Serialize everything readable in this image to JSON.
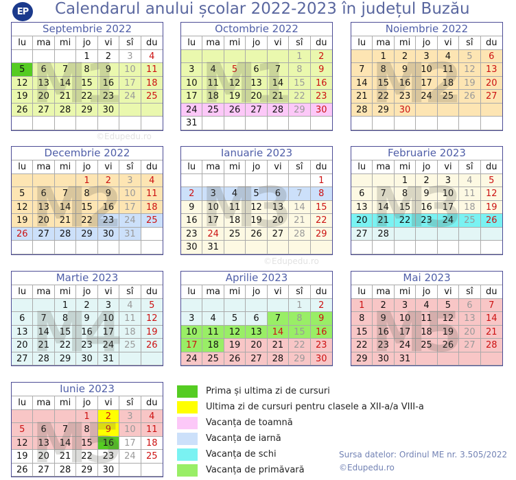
{
  "header": {
    "logo_text": "EP",
    "title": "Calendarul anului școlar 2022-2023 în județul Buzău"
  },
  "weekdays": [
    "lu",
    "ma",
    "mi",
    "jo",
    "vi",
    "sî",
    "du"
  ],
  "colors": {
    "white": "#ffffff",
    "first_last_day": "#55cc22",
    "last_day_xii_viii": "#ffff00",
    "autumn": "#fcc8f8",
    "winter": "#cce0fa",
    "ski": "#7af2f2",
    "spring": "#99ee66",
    "m1": "#eaf8ae",
    "m2": "#fde5b3",
    "m3": "#fdf9e3",
    "m4": "#e3f6f6",
    "m5": "#f8c6c6",
    "sunday_text": "#cc1111",
    "saturday_text": "#999999",
    "holiday_text": "#cc1111"
  },
  "months": [
    {
      "name": "Septembrie 2022",
      "offset": 3,
      "days": 30,
      "rows": 6,
      "watermark": "M1",
      "lead": "white",
      "trail": "m1",
      "extra": "white",
      "fills": [
        [
          1,
          4,
          "white"
        ],
        [
          5,
          5,
          "first_last_day"
        ],
        [
          6,
          30,
          "m1"
        ]
      ],
      "holidays": []
    },
    {
      "name": "Octombrie 2022",
      "offset": 5,
      "days": 31,
      "rows": 6,
      "watermark": "M1",
      "lead": "m1",
      "trail": "white",
      "extra": "white",
      "fills": [
        [
          1,
          23,
          "m1"
        ],
        [
          24,
          30,
          "autumn"
        ],
        [
          31,
          31,
          "white"
        ]
      ],
      "holidays": [
        5
      ]
    },
    {
      "name": "Noiembrie 2022",
      "offset": 1,
      "days": 30,
      "rows": 6,
      "watermark": "M2",
      "lead": "m2",
      "trail": "m2",
      "extra": "white",
      "fills": [
        [
          1,
          30,
          "m2"
        ]
      ],
      "holidays": [
        30
      ]
    },
    {
      "name": "Decembrie 2022",
      "offset": 3,
      "days": 31,
      "rows": 6,
      "watermark": "M2",
      "lead": "m2",
      "trail": "white",
      "extra": "white",
      "fills": [
        [
          1,
          22,
          "m2"
        ],
        [
          23,
          31,
          "winter"
        ]
      ],
      "holidays": [
        1,
        2,
        26
      ]
    },
    {
      "name": "Ianuarie 2023",
      "offset": 6,
      "days": 31,
      "rows": 6,
      "watermark": "M3",
      "lead": "white",
      "trail": "m3",
      "extra": "white",
      "fills": [
        [
          1,
          1,
          "white"
        ],
        [
          2,
          8,
          "winter"
        ],
        [
          9,
          31,
          "m3"
        ]
      ],
      "holidays": [
        2,
        24
      ]
    },
    {
      "name": "Februarie 2023",
      "offset": 2,
      "days": 28,
      "rows": 6,
      "watermark": "M3",
      "lead": "m3",
      "trail": "m4",
      "extra": "white",
      "fills": [
        [
          1,
          19,
          "m3"
        ],
        [
          20,
          26,
          "ski"
        ],
        [
          27,
          28,
          "m4"
        ]
      ],
      "holidays": []
    },
    {
      "name": "Martie 2023",
      "offset": 2,
      "days": 31,
      "rows": 5,
      "watermark": "M4",
      "lead": "m4",
      "trail": "m4",
      "extra": "white",
      "fills": [
        [
          1,
          31,
          "m4"
        ]
      ],
      "holidays": []
    },
    {
      "name": "Aprilie 2023",
      "offset": 5,
      "days": 30,
      "rows": 5,
      "watermark": "",
      "lead": "m4",
      "trail": "m5",
      "extra": "white",
      "fills": [
        [
          1,
          6,
          "m4"
        ],
        [
          7,
          18,
          "spring"
        ],
        [
          19,
          30,
          "m5"
        ]
      ],
      "holidays": [
        14,
        17
      ]
    },
    {
      "name": "Mai 2023",
      "offset": 0,
      "days": 31,
      "rows": 5,
      "watermark": "M5",
      "lead": "m5",
      "trail": "m5",
      "extra": "white",
      "fills": [
        [
          1,
          31,
          "m5"
        ]
      ],
      "holidays": [
        1
      ]
    },
    {
      "name": "Iunie 2023",
      "offset": 3,
      "days": 30,
      "rows": 5,
      "watermark": "M5",
      "lead": "m5",
      "trail": "white",
      "extra": "white",
      "fills": [
        [
          1,
          15,
          "m5"
        ],
        [
          2,
          2,
          "last_day_xii_viii"
        ],
        [
          9,
          9,
          "last_day_xii_viii"
        ],
        [
          16,
          16,
          "first_last_day"
        ],
        [
          17,
          30,
          "white"
        ]
      ],
      "holidays": [
        1,
        2,
        5,
        9
      ]
    }
  ],
  "legend": [
    {
      "color": "first_last_day",
      "label": "Prima și ultima zi de cursuri"
    },
    {
      "color": "last_day_xii_viii",
      "label": "Ultima zi de cursuri pentru clasele a XII-a/a VIII-a"
    },
    {
      "color": "autumn",
      "label": "Vacanța de toamnă"
    },
    {
      "color": "winter",
      "label": "Vacanța de iarnă"
    },
    {
      "color": "ski",
      "label": "Vacanța de schi"
    },
    {
      "color": "spring",
      "label": "Vacanța de primăvară"
    }
  ],
  "source": {
    "line1": "Sursa datelor: Ordinul ME nr. 3.505/2022",
    "line2": "©Edupedu.ro"
  },
  "watermark_copyright": "©Edupedu.ro"
}
